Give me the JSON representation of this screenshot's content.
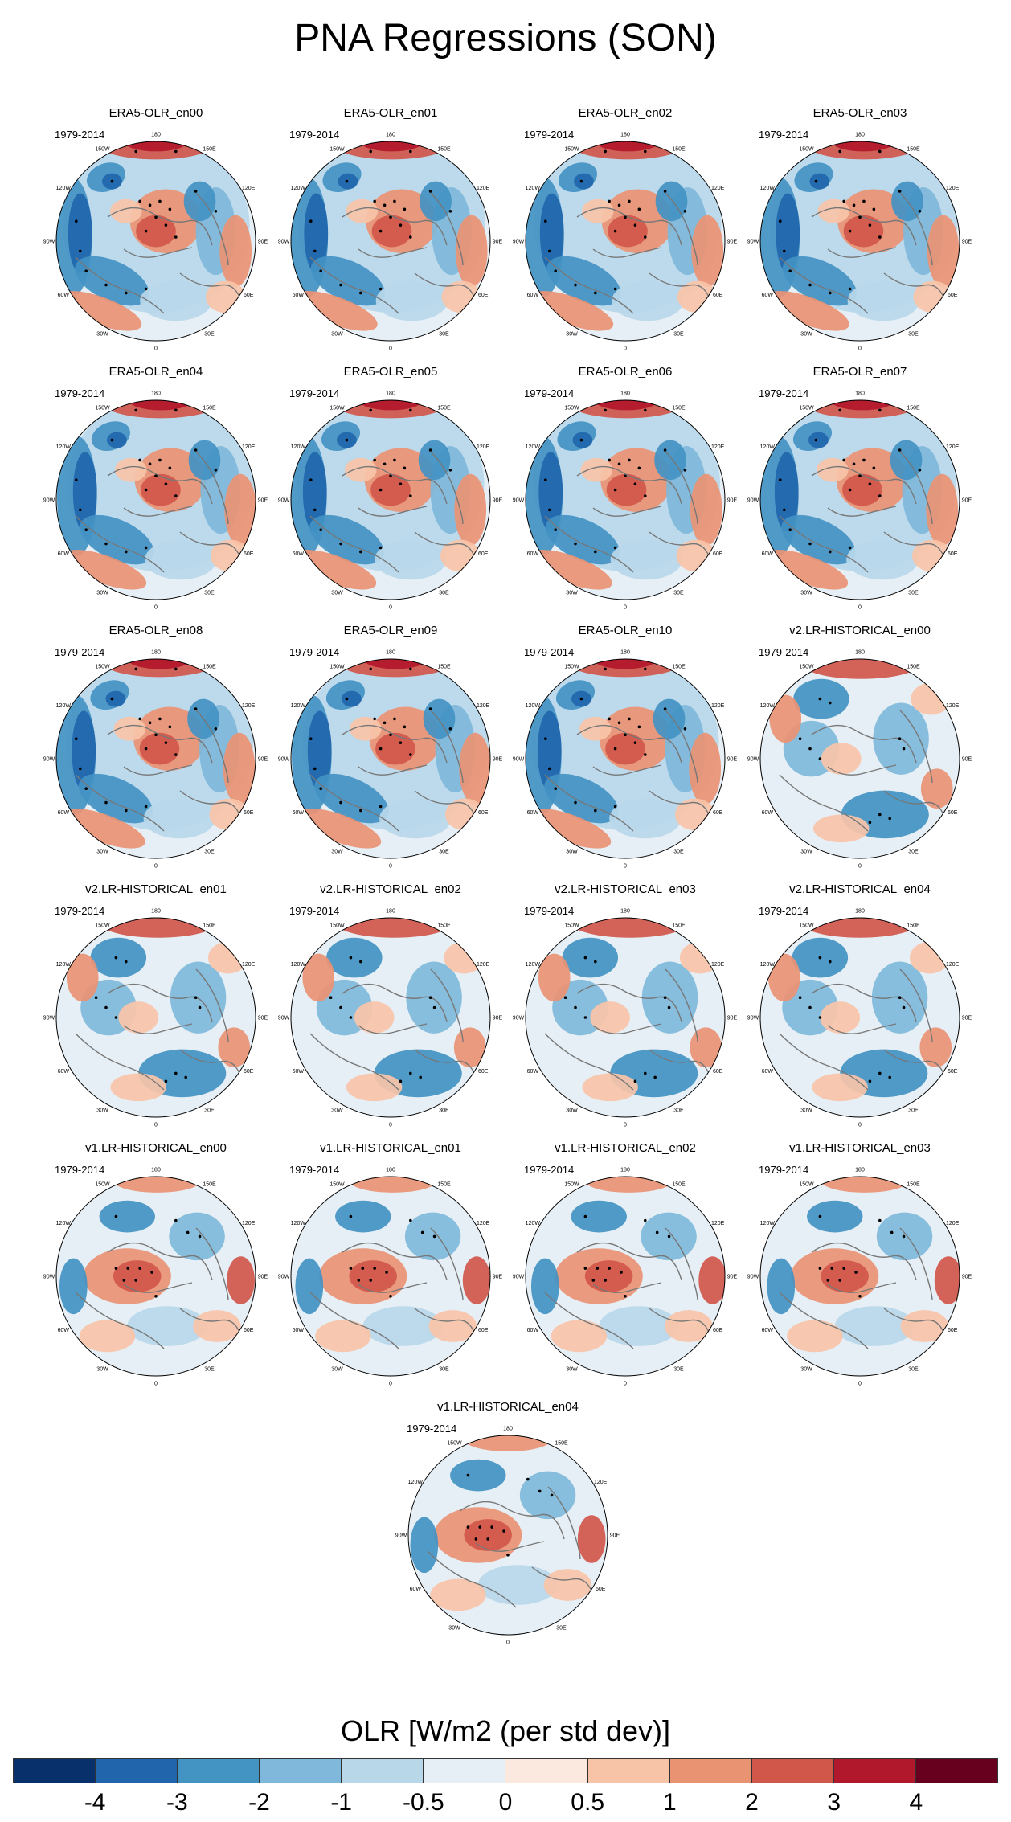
{
  "title": "PNA Regressions (SON)",
  "period": "1979-2014",
  "longitude_labels": [
    "180",
    "150E",
    "120E",
    "90E",
    "60E",
    "30E",
    "0",
    "30W",
    "60W",
    "90W",
    "120W",
    "150W"
  ],
  "panels": [
    {
      "name": "ERA5-OLR_en00",
      "pattern": "era5"
    },
    {
      "name": "ERA5-OLR_en01",
      "pattern": "era5"
    },
    {
      "name": "ERA5-OLR_en02",
      "pattern": "era5"
    },
    {
      "name": "ERA5-OLR_en03",
      "pattern": "era5"
    },
    {
      "name": "ERA5-OLR_en04",
      "pattern": "era5"
    },
    {
      "name": "ERA5-OLR_en05",
      "pattern": "era5"
    },
    {
      "name": "ERA5-OLR_en06",
      "pattern": "era5"
    },
    {
      "name": "ERA5-OLR_en07",
      "pattern": "era5"
    },
    {
      "name": "ERA5-OLR_en08",
      "pattern": "era5"
    },
    {
      "name": "ERA5-OLR_en09",
      "pattern": "era5"
    },
    {
      "name": "ERA5-OLR_en10",
      "pattern": "era5"
    },
    {
      "name": "v2.LR-HISTORICAL_en00",
      "pattern": "v2"
    },
    {
      "name": "v2.LR-HISTORICAL_en01",
      "pattern": "v2"
    },
    {
      "name": "v2.LR-HISTORICAL_en02",
      "pattern": "v2"
    },
    {
      "name": "v2.LR-HISTORICAL_en03",
      "pattern": "v2"
    },
    {
      "name": "v2.LR-HISTORICAL_en04",
      "pattern": "v2"
    },
    {
      "name": "v1.LR-HISTORICAL_en00",
      "pattern": "v1"
    },
    {
      "name": "v1.LR-HISTORICAL_en01",
      "pattern": "v1"
    },
    {
      "name": "v1.LR-HISTORICAL_en02",
      "pattern": "v1"
    },
    {
      "name": "v1.LR-HISTORICAL_en03",
      "pattern": "v1"
    },
    {
      "name": "v1.LR-HISTORICAL_en04",
      "pattern": "v1"
    }
  ],
  "colorbar": {
    "title": "OLR [W/m2 (per std dev)]",
    "colors": [
      "#08306b",
      "#2166ac",
      "#4393c3",
      "#7fb8da",
      "#b8d8ea",
      "#e6eff5",
      "#fbe9df",
      "#f8c4a8",
      "#ea9373",
      "#d1574b",
      "#b2182b",
      "#67001f"
    ],
    "ticks": [
      "-4",
      "-3",
      "-2",
      "-1",
      "-0.5",
      "0",
      "0.5",
      "1",
      "2",
      "3",
      "4"
    ]
  }
}
